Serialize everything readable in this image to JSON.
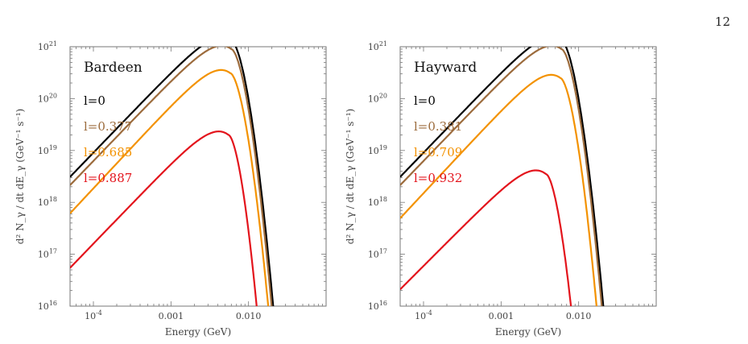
{
  "page_number": "12",
  "chart_data": [
    {
      "type": "line",
      "title": "Bardeen",
      "xlabel": "Energy (GeV)",
      "ylabel": "d² N_γ / dt dE_γ (GeV⁻¹ s⁻¹)",
      "x_scale": "log",
      "y_scale": "log",
      "xlim": [
        5e-05,
        0.1
      ],
      "ylim": [
        1e+16,
        1e+21
      ],
      "x_ticks": [
        {
          "value": 0.0001,
          "base": "10",
          "exp": "-4"
        },
        {
          "value": 0.001,
          "text": "0.001"
        },
        {
          "value": 0.01,
          "text": "0.010"
        }
      ],
      "y_ticks": [
        {
          "value": 1e+16,
          "base": "10",
          "exp": "16"
        },
        {
          "value": 1e+17,
          "base": "10",
          "exp": "17"
        },
        {
          "value": 1e+18,
          "base": "10",
          "exp": "18"
        },
        {
          "value": 1e+19,
          "base": "10",
          "exp": "19"
        },
        {
          "value": 1e+20,
          "base": "10",
          "exp": "20"
        },
        {
          "value": 1e+21,
          "base": "10",
          "exp": "21"
        }
      ],
      "legend_placement": "top-left",
      "series": [
        {
          "name": "l=0",
          "color": "#000000",
          "peak_x": 0.006,
          "peak_y": 1.3e+21,
          "rise_slope": 1.55,
          "fall_end_x": 0.022
        },
        {
          "name": "l=0.377",
          "color": "#9c6b3c",
          "peak_x": 0.006,
          "peak_y": 9e+20,
          "rise_slope": 1.55,
          "fall_end_x": 0.021
        },
        {
          "name": "l=0.685",
          "color": "#f39200",
          "peak_x": 0.0058,
          "peak_y": 3.1e+20,
          "rise_slope": 1.6,
          "fall_end_x": 0.019
        },
        {
          "name": "l=0.887",
          "color": "#e3141c",
          "peak_x": 0.0055,
          "peak_y": 2e+19,
          "rise_slope": 1.55,
          "fall_end_x": 0.0135
        }
      ]
    },
    {
      "type": "line",
      "title": "Hayward",
      "xlabel": "Energy (GeV)",
      "ylabel": "d² N_γ / dt dE_γ (GeV⁻¹ s⁻¹)",
      "x_scale": "log",
      "y_scale": "log",
      "xlim": [
        5e-05,
        0.1
      ],
      "ylim": [
        1e+16,
        1e+21
      ],
      "x_ticks": [
        {
          "value": 0.0001,
          "base": "10",
          "exp": "-4"
        },
        {
          "value": 0.001,
          "text": "0.001"
        },
        {
          "value": 0.01,
          "text": "0.010"
        }
      ],
      "y_ticks": [
        {
          "value": 1e+16,
          "base": "10",
          "exp": "16"
        },
        {
          "value": 1e+17,
          "base": "10",
          "exp": "17"
        },
        {
          "value": 1e+18,
          "base": "10",
          "exp": "18"
        },
        {
          "value": 1e+19,
          "base": "10",
          "exp": "19"
        },
        {
          "value": 1e+20,
          "base": "10",
          "exp": "20"
        },
        {
          "value": 1e+21,
          "base": "10",
          "exp": "21"
        }
      ],
      "legend_placement": "top-left",
      "series": [
        {
          "name": "l=0",
          "color": "#000000",
          "peak_x": 0.006,
          "peak_y": 1.3e+21,
          "rise_slope": 1.55,
          "fall_end_x": 0.022
        },
        {
          "name": "l=0.381",
          "color": "#9c6b3c",
          "peak_x": 0.006,
          "peak_y": 9e+20,
          "rise_slope": 1.55,
          "fall_end_x": 0.021
        },
        {
          "name": "l=0.709",
          "color": "#f39200",
          "peak_x": 0.0058,
          "peak_y": 2.5e+20,
          "rise_slope": 1.6,
          "fall_end_x": 0.018
        },
        {
          "name": "l=0.932",
          "color": "#e3141c",
          "peak_x": 0.0038,
          "peak_y": 3.5e+18,
          "rise_slope": 1.5,
          "fall_end_x": 0.0085
        }
      ]
    }
  ]
}
